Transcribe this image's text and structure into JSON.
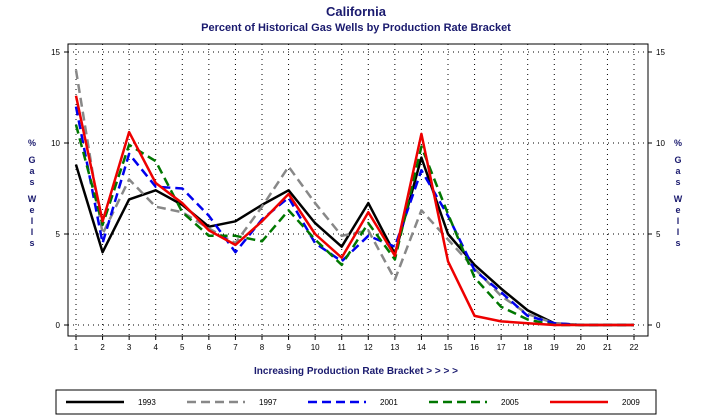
{
  "chart_data": {
    "type": "line",
    "title": "California",
    "subtitle": "Percent of Historical Gas Wells by Production Rate Bracket",
    "xlabel": "Increasing Production Rate Bracket > > > >",
    "ylabel_left": "% Gas Wells",
    "ylabel_right": "% Gas Wells",
    "x": [
      1,
      2,
      3,
      4,
      5,
      6,
      7,
      8,
      9,
      10,
      11,
      12,
      13,
      14,
      15,
      16,
      17,
      18,
      19,
      20,
      21,
      22
    ],
    "xlim": [
      1,
      22
    ],
    "ylim": [
      0,
      15
    ],
    "yticks": [
      0,
      5,
      10,
      15
    ],
    "grid": "vertical dotted",
    "legend_position": "bottom",
    "series": [
      {
        "name": "1993",
        "color": "#000000",
        "dash": "solid",
        "values": [
          8.8,
          4.0,
          6.9,
          7.4,
          6.6,
          5.4,
          5.7,
          6.6,
          7.4,
          5.6,
          4.3,
          6.7,
          3.9,
          9.2,
          5.0,
          3.3,
          2.0,
          0.8,
          0.1,
          0.0,
          0.0,
          0.0
        ]
      },
      {
        "name": "1997",
        "color": "#888888",
        "dash": "dashed",
        "values": [
          14.0,
          5.0,
          8.0,
          6.5,
          6.2,
          5.3,
          4.5,
          6.5,
          8.7,
          6.7,
          4.9,
          5.2,
          2.5,
          6.3,
          4.7,
          3.1,
          1.6,
          0.6,
          0.1,
          0.0,
          0.0,
          0.0
        ]
      },
      {
        "name": "2001",
        "color": "#0000ee",
        "dash": "dashed",
        "values": [
          12.0,
          4.5,
          9.4,
          7.6,
          7.5,
          6.0,
          4.0,
          5.8,
          7.0,
          4.5,
          3.5,
          4.9,
          4.3,
          8.5,
          6.0,
          3.0,
          1.8,
          0.5,
          0.1,
          0.0,
          0.0,
          0.0
        ]
      },
      {
        "name": "2005",
        "color": "#007700",
        "dash": "dashed",
        "values": [
          11.0,
          5.5,
          9.9,
          9.0,
          6.2,
          4.9,
          4.9,
          4.6,
          6.3,
          4.7,
          3.3,
          5.6,
          3.6,
          9.8,
          6.1,
          2.6,
          1.0,
          0.3,
          0.0,
          0.0,
          0.0,
          0.0
        ]
      },
      {
        "name": "2009",
        "color": "#ee0000",
        "dash": "solid",
        "values": [
          12.6,
          5.7,
          10.6,
          7.8,
          6.7,
          5.2,
          4.4,
          5.7,
          7.2,
          5.0,
          3.7,
          6.2,
          3.8,
          10.5,
          3.5,
          0.5,
          0.2,
          0.1,
          0.0,
          0.0,
          0.0,
          0.0
        ]
      }
    ]
  }
}
